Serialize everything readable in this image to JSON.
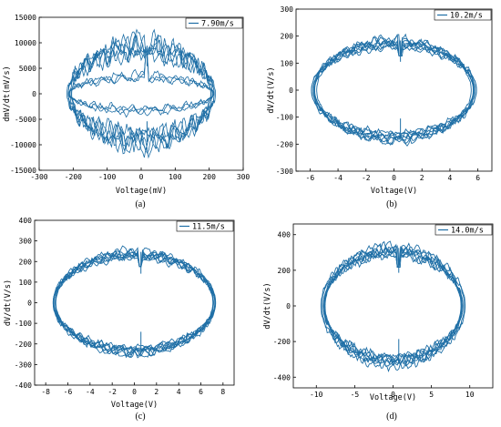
{
  "colors": {
    "series": "#1f6fa6",
    "axis": "#000000"
  },
  "chart_data": [
    {
      "type": "line",
      "caption": "(a)",
      "series": [
        {
          "name": "7.90m/s"
        }
      ],
      "xlabel": "Voltage(mV)",
      "ylabel": "dmV/dt(mV/s)",
      "xlim": [
        -300,
        300
      ],
      "ylim": [
        -15000,
        15000
      ],
      "xticks": [
        "-300",
        "-200",
        "-100",
        "0",
        "100",
        "200",
        "300"
      ],
      "yticks": [
        "-15000",
        "-10000",
        "-5000",
        "0",
        "5000",
        "10000",
        "15000"
      ],
      "loop": {
        "x_amplitude": 215,
        "y_amplitude": 9000,
        "inner_y_amplitude": 3000,
        "y_peak": 14000,
        "y_trough": -14000
      },
      "grid": false,
      "legend": "top-right"
    },
    {
      "type": "line",
      "caption": "(b)",
      "series": [
        {
          "name": "10.2m/s"
        }
      ],
      "xlabel": "Voltage(V)",
      "ylabel": "dV/dt(V/s)",
      "xlim": [
        -7,
        7
      ],
      "ylim": [
        -300,
        300
      ],
      "xticks": [
        "-6",
        "-4",
        "-2",
        "0",
        "2",
        "4",
        "6"
      ],
      "yticks": [
        "-300",
        "-200",
        "-100",
        "0",
        "100",
        "200",
        "300"
      ],
      "loop": {
        "x_amplitude": 5.8,
        "y_amplitude": 175,
        "y_peak": 230,
        "y_trough": -225
      },
      "grid": false,
      "legend": "top-right"
    },
    {
      "type": "line",
      "caption": "(c)",
      "series": [
        {
          "name": "11.5m/s"
        }
      ],
      "xlabel": "Voltage(V)",
      "ylabel": "dV/dt(V/s)",
      "xlim": [
        -9,
        9
      ],
      "ylim": [
        -400,
        400
      ],
      "xticks": [
        "-8",
        "-6",
        "-4",
        "-2",
        "0",
        "2",
        "4",
        "6",
        "8"
      ],
      "yticks": [
        "-400",
        "-300",
        "-200",
        "-100",
        "0",
        "100",
        "200",
        "300",
        "400"
      ],
      "loop": {
        "x_amplitude": 7.4,
        "y_amplitude": 235,
        "y_peak": 320,
        "y_trough": -315
      },
      "grid": false,
      "legend": "top-right"
    },
    {
      "type": "line",
      "caption": "(d)",
      "series": [
        {
          "name": "14.0m/s"
        }
      ],
      "xlabel": "Voltage(V)",
      "ylabel": "dV/dt(V/s)",
      "xlim": [
        -13,
        13
      ],
      "ylim": [
        -460,
        460
      ],
      "xticks": [
        "-10",
        "-5",
        "0",
        "5",
        "10"
      ],
      "yticks": [
        "-400",
        "-200",
        "0",
        "200",
        "400"
      ],
      "loop": {
        "x_amplitude": 9.3,
        "y_amplitude": 310,
        "y_peak": 395,
        "y_trough": -400
      },
      "grid": false,
      "legend": "top-right"
    }
  ]
}
